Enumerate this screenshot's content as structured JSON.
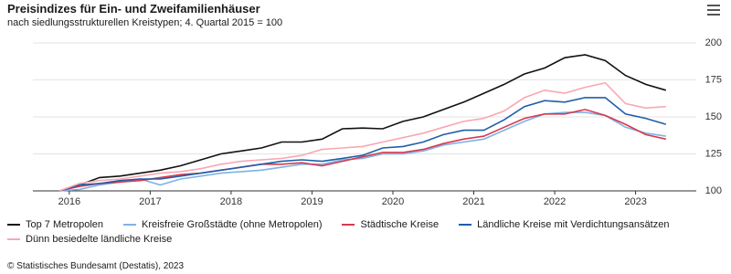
{
  "chart_data": {
    "type": "line",
    "title": "Preisindizes für Ein- und Zweifamilienhäuser",
    "subtitle": "nach siedlungsstrukturellen Kreistypen; 4. Quartal 2015 = 100",
    "source": "© Statistisches Bundesamt (Destatis), 2023",
    "x": [
      2015.875,
      2016.125,
      2016.375,
      2016.625,
      2016.875,
      2017.125,
      2017.375,
      2017.625,
      2017.875,
      2018.125,
      2018.375,
      2018.625,
      2018.875,
      2019.125,
      2019.375,
      2019.625,
      2019.875,
      2020.125,
      2020.375,
      2020.625,
      2020.875,
      2021.125,
      2021.375,
      2021.625,
      2021.875,
      2022.125,
      2022.375,
      2022.625,
      2022.875,
      2023.125,
      2023.375
    ],
    "xlim": [
      2015.55,
      2023.75
    ],
    "xticks": [
      {
        "value": 2016,
        "label": "2016"
      },
      {
        "value": 2017,
        "label": "2017"
      },
      {
        "value": 2018,
        "label": "2018"
      },
      {
        "value": 2019,
        "label": "2019"
      },
      {
        "value": 2020,
        "label": "2020"
      },
      {
        "value": 2021,
        "label": "2021"
      },
      {
        "value": 2022,
        "label": "2022"
      },
      {
        "value": 2023,
        "label": "2023"
      }
    ],
    "ylim": [
      100,
      200
    ],
    "yticks": [
      100,
      125,
      150,
      175,
      200
    ],
    "grid": true,
    "series": [
      {
        "name": "Top 7 Metropolen",
        "color": "#111111",
        "values": [
          100,
          104,
          109,
          110,
          112,
          114,
          117,
          121,
          125,
          127,
          129,
          133,
          133,
          135,
          142,
          142.5,
          142,
          147,
          150,
          155,
          160,
          166,
          172,
          179,
          183,
          190,
          192,
          188,
          178,
          172,
          168
        ]
      },
      {
        "name": "Kreisfreie Großstädte (ohne Metropolen)",
        "color": "#7fb2e5",
        "values": [
          100,
          101,
          104,
          106,
          108,
          104,
          108,
          110,
          112,
          113,
          114,
          116,
          118,
          118,
          121,
          122,
          125,
          125,
          127,
          131,
          133,
          135,
          141,
          147,
          152,
          153,
          153,
          151,
          143,
          139,
          137
        ]
      },
      {
        "name": "Städtische Kreise",
        "color": "#d6394f",
        "values": [
          100,
          103,
          105,
          106,
          107,
          109,
          111,
          112,
          114,
          116,
          118,
          118,
          119,
          117,
          120,
          123,
          126,
          126,
          128,
          132,
          135,
          137,
          143,
          149,
          152,
          152,
          155,
          151,
          145,
          138,
          135
        ]
      },
      {
        "name": "Ländliche Kreise mit Verdichtungsansätzen",
        "color": "#1f5ea8",
        "values": [
          100,
          104,
          105,
          107,
          108,
          108,
          110,
          112,
          114,
          116,
          118,
          120,
          121,
          120,
          122,
          124,
          129,
          130,
          133,
          138,
          141,
          141,
          148,
          157,
          161,
          160,
          163,
          163,
          152,
          149,
          145
        ]
      },
      {
        "name": "Dünn besiedelte ländliche Kreise",
        "color": "#f7a8b4",
        "values": [
          100,
          105,
          107,
          108,
          110,
          112,
          113,
          115,
          118,
          120,
          121,
          122,
          124,
          128,
          129,
          130,
          133,
          136,
          139,
          143,
          147,
          149,
          154,
          163,
          168,
          166,
          170,
          173,
          159,
          156,
          157
        ]
      }
    ]
  }
}
